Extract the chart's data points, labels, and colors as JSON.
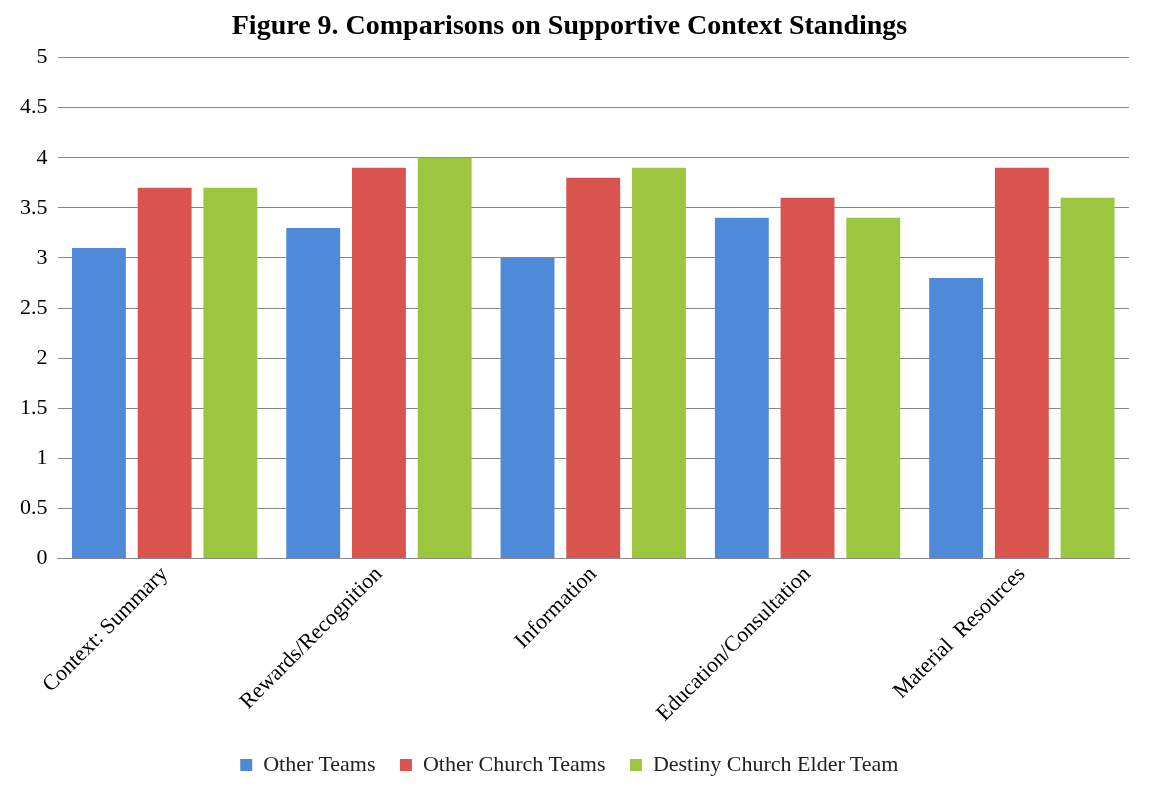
{
  "chart_data": {
    "type": "bar",
    "title": "Figure 9. Comparisons on Supportive Context Standings",
    "categories": [
      "Context: Summary",
      "Rewards/Recognition",
      "Information",
      "Education/Consultation",
      "Material  Resources"
    ],
    "series": [
      {
        "name": "Other Teams",
        "color": "#4f8ad9",
        "values": [
          3.1,
          3.3,
          3.0,
          3.4,
          2.8
        ]
      },
      {
        "name": "Other Church Teams",
        "color": "#d9534f",
        "values": [
          3.7,
          3.9,
          3.8,
          3.6,
          3.9
        ]
      },
      {
        "name": "Destiny Church Elder Team",
        "color": "#9cc63f",
        "values": [
          3.7,
          4.0,
          3.9,
          3.4,
          3.6
        ]
      }
    ],
    "ylim": [
      0,
      5
    ],
    "yticks": [
      0,
      0.5,
      1,
      1.5,
      2,
      2.5,
      3,
      3.5,
      4,
      4.5,
      5
    ],
    "grid": "y",
    "legend": "bottom"
  }
}
